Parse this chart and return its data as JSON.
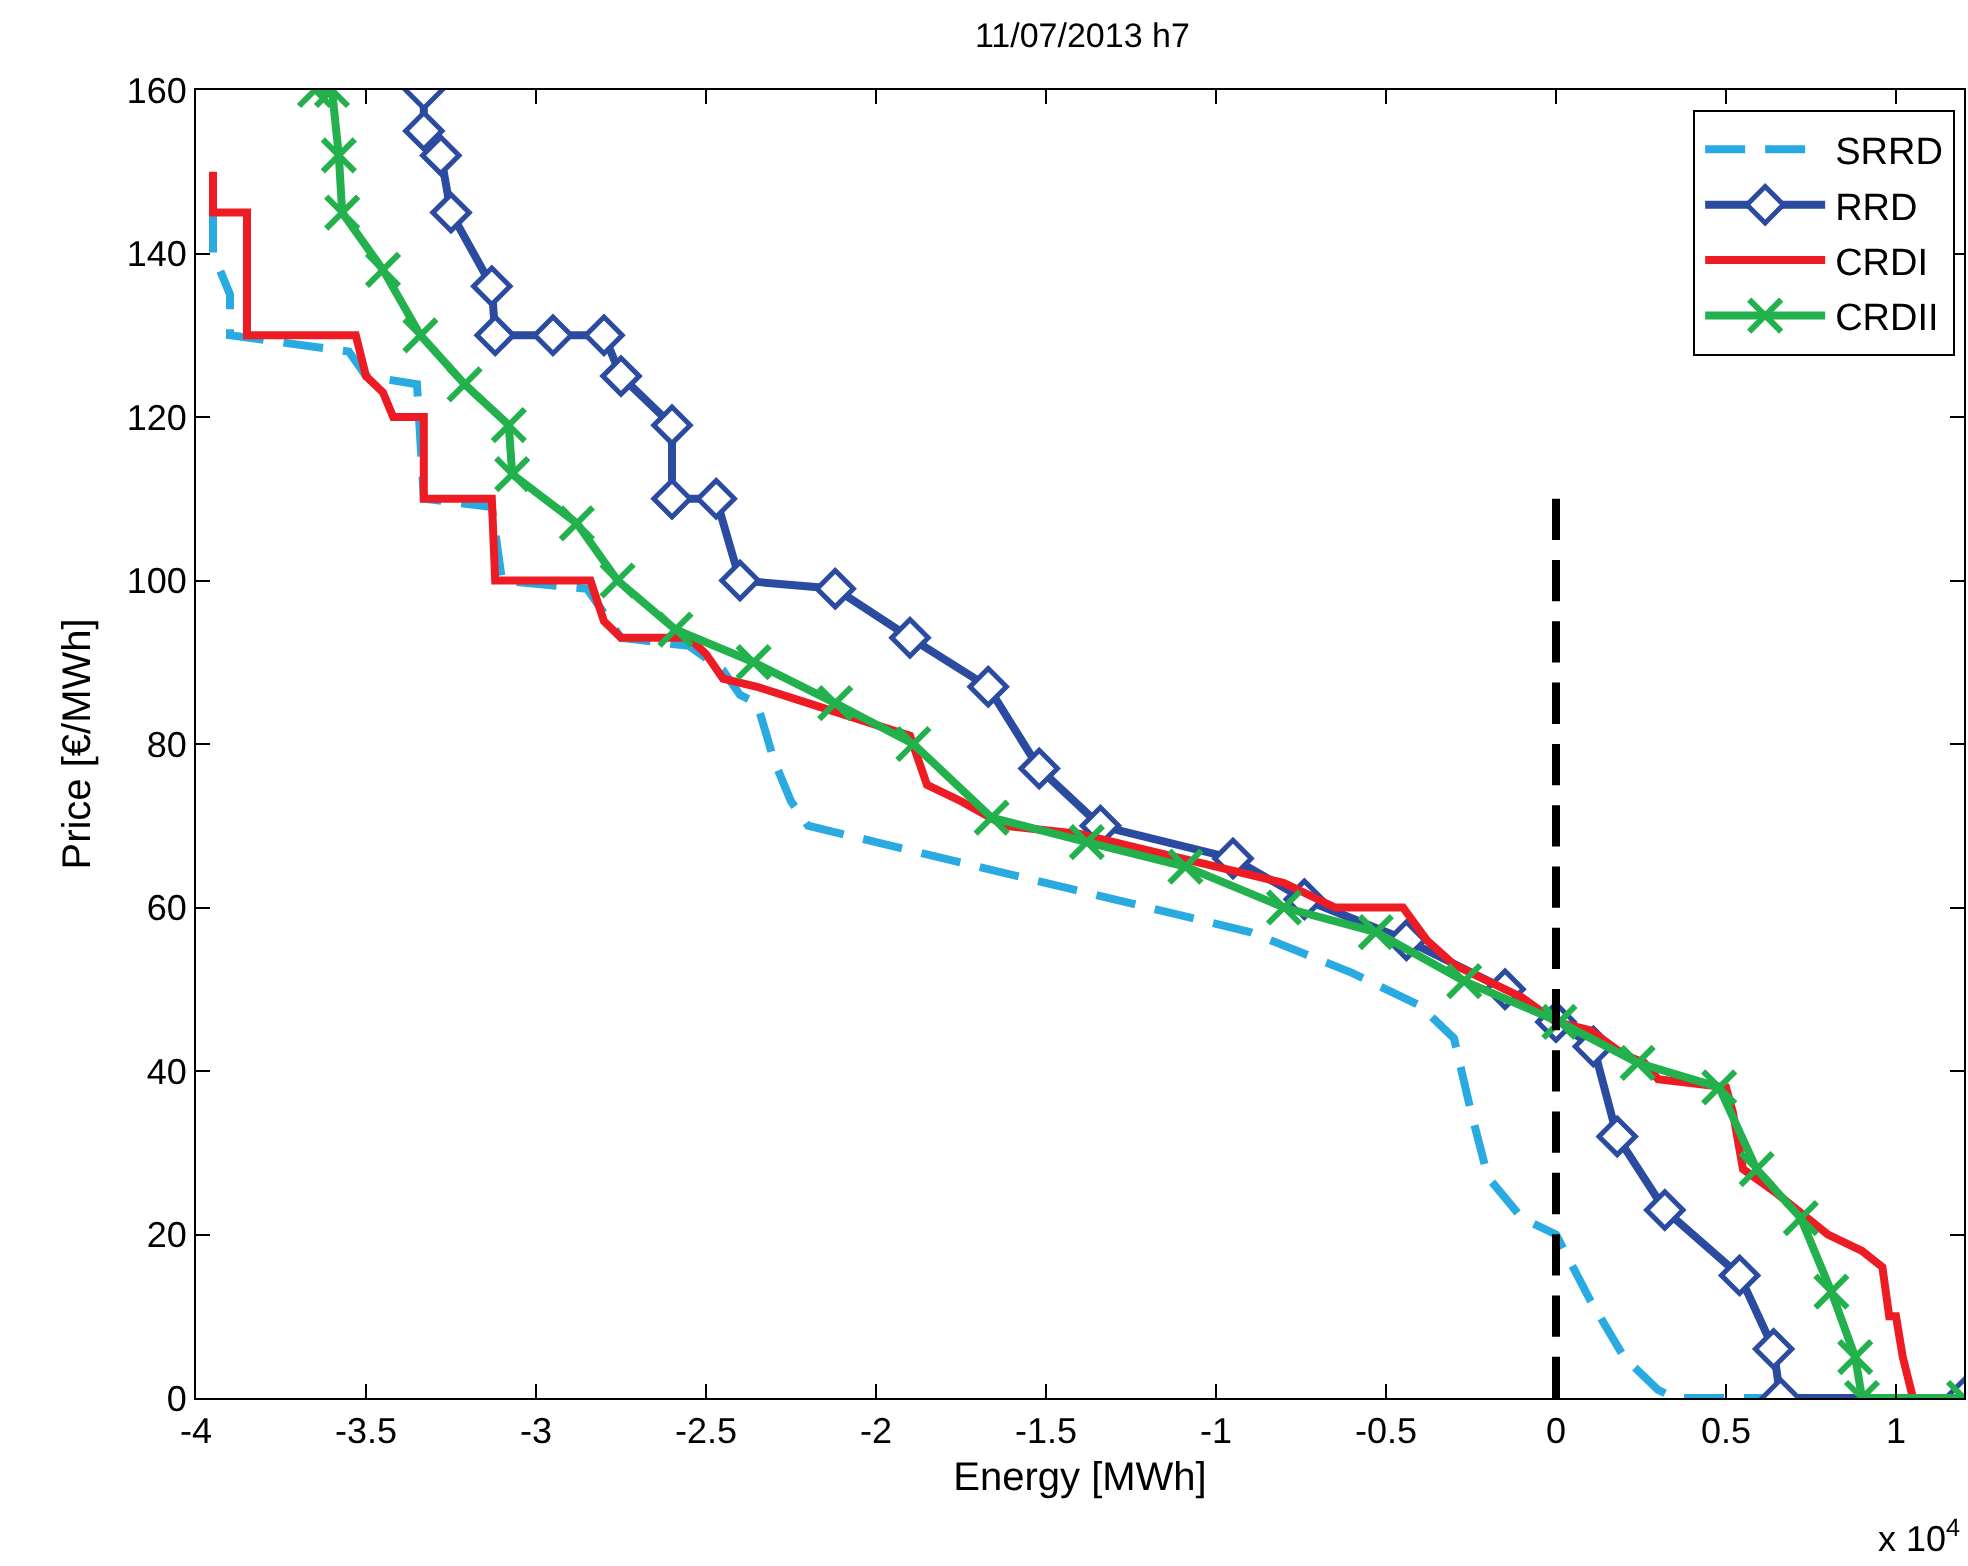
{
  "chart_data": {
    "type": "line",
    "title": "11/07/2013 h7",
    "xlabel": "Energy [MWh]",
    "ylabel": "Price [€/MWh]",
    "xlim": [
      -4,
      1.2
    ],
    "xticks": [
      -4,
      -3.5,
      -3,
      -2.5,
      -2,
      -1.5,
      -1,
      -0.5,
      0,
      0.5,
      1
    ],
    "ylim": [
      0,
      160
    ],
    "yticks": [
      0,
      20,
      40,
      60,
      80,
      100,
      120,
      140,
      160
    ],
    "grid": false,
    "legend": "top right",
    "line_style": "solid",
    "annotations": [
      "x 10$^{4}$"
    ],
    "series": [
      {
        "name": "SRRD",
        "color": "#29abe2",
        "line_style": "dashed",
        "marker": "none",
        "x": [
          -3.95,
          -3.95,
          -3.9,
          -3.9,
          -3.55,
          -3.5,
          -3.35,
          -3.33,
          -3.13,
          -3.1,
          -2.85,
          -2.8,
          -2.75,
          -2.55,
          -2.45,
          -2.4,
          -2.35,
          -2.3,
          -2.25,
          -2.2,
          -2.0,
          -1.7,
          -1.4,
          -1.2,
          -0.9,
          -0.6,
          -0.4,
          -0.3,
          -0.25,
          -0.2,
          -0.1,
          0,
          0.1,
          0.2,
          0.3,
          0.35,
          1.2
        ],
        "values": [
          145,
          140,
          135,
          130,
          128,
          125,
          124,
          110,
          109,
          100,
          99,
          96,
          93,
          92,
          89,
          86,
          85,
          78,
          73,
          70,
          68,
          65,
          62,
          60,
          57,
          52,
          48,
          44,
          35,
          27,
          22,
          20,
          12,
          5,
          1,
          0,
          0
        ]
      },
      {
        "name": "RRD",
        "color": "#2b4ba0",
        "marker": "diamond",
        "x": [
          -3.33,
          -3.33,
          -3.28,
          -3.25,
          -3.13,
          -3.12,
          -2.95,
          -2.8,
          -2.75,
          -2.6,
          -2.6,
          -2.47,
          -2.4,
          -2.12,
          -1.9,
          -1.67,
          -1.52,
          -1.34,
          -0.95,
          -0.74,
          -0.44,
          -0.15,
          0,
          0.11,
          0.18,
          0.32,
          0.54,
          0.64,
          0.66,
          1.2
        ],
        "values": [
          160,
          155,
          152,
          145,
          136,
          130,
          130,
          130,
          125,
          119,
          110,
          110,
          100,
          99,
          93,
          87,
          77,
          70,
          66,
          61,
          56,
          50,
          46,
          43,
          32,
          23,
          15,
          6,
          0,
          0
        ]
      },
      {
        "name": "CRDI",
        "color": "#ed1c24",
        "marker": "none",
        "x": [
          -3.95,
          -3.95,
          -3.85,
          -3.85,
          -3.53,
          -3.5,
          -3.45,
          -3.42,
          -3.33,
          -3.33,
          -3.13,
          -3.12,
          -2.84,
          -2.8,
          -2.75,
          -2.55,
          -2.5,
          -2.45,
          -2.35,
          -2.2,
          -2.05,
          -1.9,
          -1.85,
          -1.75,
          -1.62,
          -1.4,
          -1.2,
          -1.0,
          -0.8,
          -0.65,
          -0.45,
          -0.38,
          -0.3,
          -0.2,
          -0.1,
          0,
          0.1,
          0.2,
          0.26,
          0.3,
          0.5,
          0.52,
          0.55,
          0.65,
          0.8,
          0.9,
          0.96,
          0.98,
          1.0,
          1.02,
          1.05,
          1.2
        ],
        "values": [
          150,
          145,
          145,
          130,
          130,
          125,
          123,
          120,
          120,
          110,
          110,
          100,
          100,
          95,
          93,
          93,
          91,
          88,
          87,
          85,
          83,
          81,
          75,
          73,
          70,
          69,
          67,
          65,
          63,
          60,
          60,
          56,
          53,
          51,
          49,
          46,
          45,
          42,
          41,
          39,
          38,
          35,
          28,
          25,
          20,
          18,
          16,
          10,
          10,
          5,
          0,
          0
        ]
      },
      {
        "name": "CRDII",
        "color": "#22b14c",
        "marker": "cross",
        "x": [
          -3.65,
          -3.6,
          -3.58,
          -3.57,
          -3.45,
          -3.34,
          -3.21,
          -3.08,
          -3.07,
          -2.88,
          -2.76,
          -2.59,
          -2.36,
          -2.12,
          -1.89,
          -1.66,
          -1.38,
          -1.09,
          -0.8,
          -0.53,
          -0.27,
          0.01,
          0.24,
          0.48,
          0.59,
          0.72,
          0.81,
          0.88,
          0.9,
          1.2
        ],
        "values": [
          160,
          160,
          152,
          145,
          138,
          130,
          124,
          119,
          113,
          107,
          100,
          94,
          90,
          85,
          80,
          71,
          68,
          65,
          60,
          57,
          51,
          46,
          41,
          38,
          28,
          22,
          13,
          5,
          0,
          0
        ]
      },
      {
        "color": "#000000",
        "line_style": "dashed",
        "marker": "none",
        "x": [
          0,
          0
        ],
        "values": [
          0,
          110
        ]
      }
    ]
  }
}
